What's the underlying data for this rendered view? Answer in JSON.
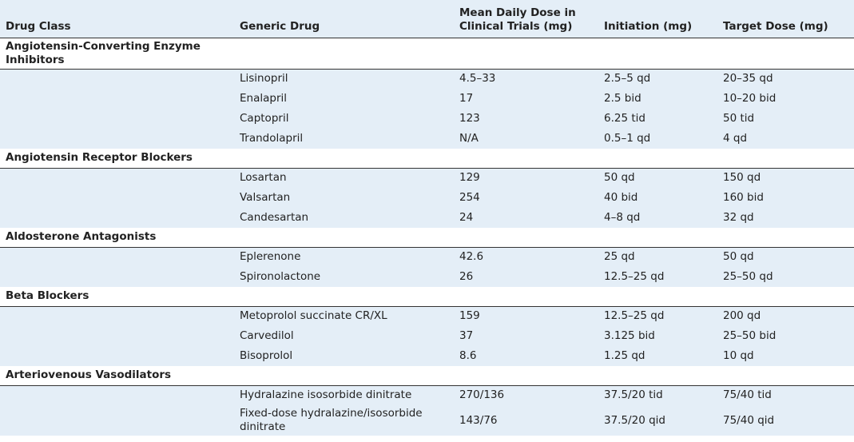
{
  "table": {
    "columns": [
      "Drug Class",
      "Generic Drug",
      "Mean Daily Dose in Clinical Trials (mg)",
      "Initiation (mg)",
      "Target Dose (mg)"
    ],
    "groups": [
      {
        "name": "Angiotensin-Converting Enzyme Inhibitors",
        "rows": [
          [
            "Lisinopril",
            "4.5–33",
            "2.5–5 qd",
            "20–35 qd"
          ],
          [
            "Enalapril",
            "17",
            "2.5 bid",
            "10–20 bid"
          ],
          [
            "Captopril",
            "123",
            "6.25 tid",
            "50 tid"
          ],
          [
            "Trandolapril",
            "N/A",
            "0.5–1 qd",
            "4 qd"
          ]
        ]
      },
      {
        "name": "Angiotensin Receptor Blockers",
        "rows": [
          [
            "Losartan",
            "129",
            "50 qd",
            "150 qd"
          ],
          [
            "Valsartan",
            "254",
            "40 bid",
            "160 bid"
          ],
          [
            "Candesartan",
            "24",
            "4–8 qd",
            "32 qd"
          ]
        ]
      },
      {
        "name": "Aldosterone Antagonists",
        "rows": [
          [
            "Eplerenone",
            "42.6",
            "25 qd",
            "50 qd"
          ],
          [
            "Spironolactone",
            "26",
            "12.5–25 qd",
            "25–50 qd"
          ]
        ]
      },
      {
        "name": "Beta Blockers",
        "rows": [
          [
            "Metoprolol succinate CR/XL",
            "159",
            "12.5–25 qd",
            "200 qd"
          ],
          [
            "Carvedilol",
            "37",
            "3.125 bid",
            "25–50 bid"
          ],
          [
            "Bisoprolol",
            "8.6",
            "1.25 qd",
            "10 qd"
          ]
        ]
      },
      {
        "name": "Arteriovenous Vasodilators",
        "rows": [
          [
            "Hydralazine isosorbide dinitrate",
            "270/136",
            "37.5/20 tid",
            "75/40 tid"
          ],
          [
            "Fixed-dose hydralazine/isosorbide dinitrate",
            "143/76",
            "37.5/20 qid",
            "75/40 qid"
          ]
        ]
      }
    ]
  }
}
